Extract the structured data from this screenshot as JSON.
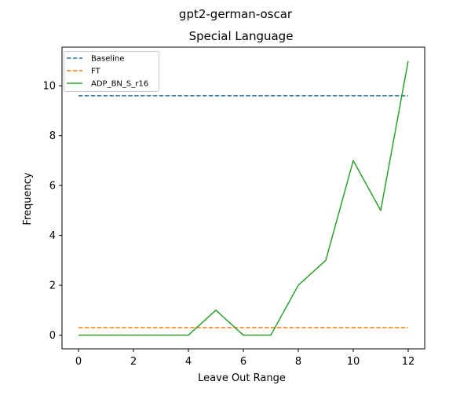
{
  "figure": {
    "suptitle": "gpt2-german-oscar"
  },
  "chart_data": {
    "type": "line",
    "title": "Special Language",
    "xlabel": "Leave Out Range",
    "ylabel": "Frequency",
    "xlim": [
      -0.6,
      12.6
    ],
    "ylim": [
      -0.55,
      11.55
    ],
    "xticks": [
      0,
      2,
      4,
      6,
      8,
      10,
      12
    ],
    "yticks": [
      0,
      2,
      4,
      6,
      8,
      10
    ],
    "grid": false,
    "legend_position": "upper-left",
    "series": [
      {
        "name": "Baseline",
        "color": "#1f77b4",
        "style": "dashed",
        "x": [
          0,
          12
        ],
        "y": [
          9.6,
          9.6
        ]
      },
      {
        "name": "FT",
        "color": "#ff7f0e",
        "style": "dashed",
        "x": [
          0,
          12
        ],
        "y": [
          0.3,
          0.3
        ]
      },
      {
        "name": "ADP_BN_S_r16",
        "color": "#2ca02c",
        "style": "solid",
        "x": [
          0,
          1,
          2,
          3,
          4,
          5,
          6,
          7,
          8,
          9,
          10,
          11,
          12
        ],
        "y": [
          0,
          0,
          0,
          0,
          0,
          1,
          0,
          0,
          2,
          3,
          7,
          5,
          11
        ]
      }
    ]
  }
}
